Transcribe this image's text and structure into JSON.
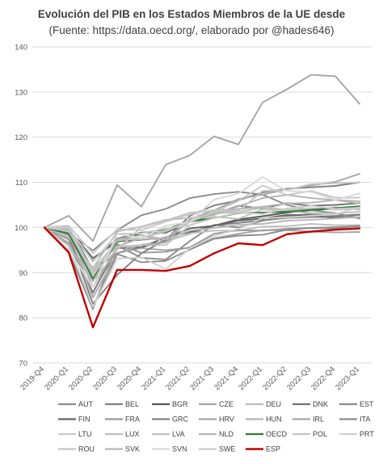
{
  "chart_data": {
    "type": "line",
    "title": "Evolución del PIB en los Estados Miembros de la UE desde",
    "subtitle": "(Fuente: https://data.oecd.org/, elaborado por @hades646)",
    "xlabel": "",
    "ylabel": "",
    "x": [
      "2019-Q4",
      "2020-Q1",
      "2020-Q2",
      "2020-Q3",
      "2020-Q4",
      "2021-Q1",
      "2021-Q2",
      "2021-Q3",
      "2021-Q4",
      "2022-Q1",
      "2022-Q2",
      "2022-Q3",
      "2022-Q4",
      "2023-Q1"
    ],
    "ylim": [
      70,
      140
    ],
    "yticks": [
      70,
      80,
      90,
      100,
      110,
      120,
      130,
      140
    ],
    "grid": true,
    "legend_position": "bottom",
    "highlight_series": "ESP",
    "series": [
      {
        "name": "AUT",
        "color": "#8c8c8c",
        "values": [
          100,
          97.4,
          85.5,
          96.0,
          93.3,
          92.9,
          97.0,
          100.6,
          100.0,
          101.5,
          102.5,
          103.0,
          102.6,
          102.9
        ]
      },
      {
        "name": "BEL",
        "color": "#7f7f7f",
        "values": [
          100,
          96.5,
          85.6,
          95.4,
          95.6,
          97.0,
          98.6,
          100.5,
          101.0,
          101.6,
          102.1,
          102.3,
          102.4,
          102.8
        ]
      },
      {
        "name": "BGR",
        "color": "#595959",
        "values": [
          100,
          99.8,
          90.7,
          94.3,
          95.6,
          97.8,
          99.0,
          100.4,
          101.8,
          102.5,
          103.3,
          103.8,
          104.2,
          104.7
        ]
      },
      {
        "name": "CZE",
        "color": "#a6a6a6",
        "values": [
          100,
          96.6,
          88.2,
          94.4,
          95.4,
          95.0,
          95.5,
          97.6,
          98.6,
          99.4,
          99.4,
          99.1,
          98.9,
          99.0
        ]
      },
      {
        "name": "DEU",
        "color": "#bfbfbf",
        "values": [
          100,
          98.1,
          89.5,
          97.6,
          98.3,
          96.8,
          98.7,
          99.3,
          99.3,
          100.2,
          100.3,
          100.8,
          100.5,
          100.5
        ]
      },
      {
        "name": "DNK",
        "color": "#737373",
        "values": [
          100,
          99.2,
          92.6,
          97.5,
          98.9,
          98.8,
          101.2,
          102.9,
          104.8,
          104.2,
          105.4,
          104.8,
          105.0,
          105.4
        ]
      },
      {
        "name": "EST",
        "color": "#8c8c8c",
        "values": [
          100,
          98.8,
          94.9,
          99.4,
          102.7,
          104.1,
          106.5,
          107.4,
          107.9,
          107.3,
          105.0,
          103.8,
          103.2,
          102.0
        ]
      },
      {
        "name": "FIN",
        "color": "#666666",
        "values": [
          100,
          99.6,
          93.2,
          96.9,
          97.3,
          97.7,
          99.8,
          100.4,
          101.5,
          102.0,
          102.8,
          102.7,
          102.1,
          102.3
        ]
      },
      {
        "name": "FRA",
        "color": "#999999",
        "values": [
          100,
          94.5,
          81.9,
          96.3,
          94.4,
          94.6,
          95.6,
          98.6,
          99.4,
          99.3,
          99.7,
          99.9,
          100.1,
          100.3
        ]
      },
      {
        "name": "GRC",
        "color": "#808080",
        "values": [
          100,
          98.2,
          83.1,
          89.5,
          94.3,
          97.3,
          102.6,
          104.9,
          106.0,
          107.8,
          108.6,
          108.9,
          109.2,
          110.0
        ]
      },
      {
        "name": "HRV",
        "color": "#a6a6a6",
        "values": [
          100,
          98.9,
          84.5,
          94.3,
          96.2,
          96.7,
          101.8,
          103.8,
          106.3,
          107.3,
          108.4,
          109.3,
          110.1,
          111.9
        ]
      },
      {
        "name": "HUN",
        "color": "#b3b3b3",
        "values": [
          100,
          99.5,
          86.7,
          95.8,
          97.7,
          99.1,
          101.6,
          102.8,
          104.7,
          106.5,
          107.2,
          106.5,
          106.1,
          105.8
        ]
      },
      {
        "name": "IRL",
        "color": "#a6a6a6",
        "values": [
          100,
          102.6,
          97.0,
          109.4,
          104.6,
          113.9,
          116.0,
          120.2,
          118.4,
          127.7,
          130.6,
          133.8,
          133.5,
          127.4
        ]
      },
      {
        "name": "ITA",
        "color": "#8c8c8c",
        "values": [
          100,
          94.6,
          82.3,
          94.1,
          92.3,
          92.6,
          95.1,
          97.5,
          98.2,
          98.4,
          99.5,
          99.9,
          99.8,
          100.4
        ]
      },
      {
        "name": "LTU",
        "color": "#c8c8c8",
        "values": [
          100,
          100.4,
          94.3,
          99.6,
          99.4,
          101.3,
          102.9,
          103.9,
          104.0,
          104.6,
          103.9,
          104.3,
          103.9,
          104.1
        ]
      },
      {
        "name": "LUX",
        "color": "#bdbdbd",
        "values": [
          100,
          98.1,
          91.0,
          99.1,
          100.2,
          101.7,
          102.1,
          103.1,
          103.4,
          104.4,
          103.8,
          104.0,
          104.5,
          103.9
        ]
      },
      {
        "name": "LVA",
        "color": "#c0c0c0",
        "values": [
          100,
          97.8,
          91.1,
          95.8,
          96.1,
          96.1,
          100.5,
          102.4,
          101.9,
          104.0,
          103.6,
          103.2,
          103.1,
          103.5
        ]
      },
      {
        "name": "NLD",
        "color": "#b5b5b5",
        "values": [
          100,
          98.3,
          90.2,
          97.3,
          97.4,
          97.6,
          101.3,
          103.3,
          104.1,
          104.6,
          105.3,
          105.5,
          106.1,
          105.3
        ]
      },
      {
        "name": "OECD",
        "color": "#2e7d32",
        "values": [
          100,
          98.6,
          88.7,
          96.8,
          98.8,
          99.6,
          101.3,
          102.1,
          103.2,
          103.3,
          103.5,
          103.9,
          104.3,
          104.7
        ]
      },
      {
        "name": "POL",
        "color": "#c6c6c6",
        "values": [
          100,
          99.2,
          90.5,
          97.1,
          97.7,
          99.4,
          101.2,
          103.4,
          105.9,
          109.3,
          107.2,
          108.1,
          106.6,
          106.6
        ]
      },
      {
        "name": "PRT",
        "color": "#d0d0d0",
        "values": [
          100,
          96.0,
          82.4,
          93.1,
          93.4,
          90.8,
          95.4,
          98.1,
          99.7,
          102.1,
          102.2,
          102.6,
          102.9,
          104.5
        ]
      },
      {
        "name": "ROU",
        "color": "#c4c4c4",
        "values": [
          100,
          100.3,
          89.8,
          95.1,
          100.1,
          101.5,
          103.3,
          103.6,
          103.6,
          108.1,
          108.3,
          109.6,
          109.8,
          110.0
        ]
      },
      {
        "name": "SVK",
        "color": "#b8b8b8",
        "values": [
          100,
          96.0,
          88.0,
          97.4,
          98.3,
          97.4,
          99.3,
          99.9,
          100.6,
          100.8,
          101.5,
          101.7,
          102.0,
          102.3
        ]
      },
      {
        "name": "SVN",
        "color": "#d9d9d9",
        "values": [
          100,
          95.1,
          86.7,
          98.6,
          97.6,
          100.4,
          101.2,
          106.2,
          107.5,
          111.2,
          108.1,
          107.9,
          106.1,
          107.6
        ]
      },
      {
        "name": "SWE",
        "color": "#cccccc",
        "values": [
          100,
          99.9,
          92.4,
          98.6,
          98.7,
          99.8,
          100.5,
          102.1,
          103.3,
          103.0,
          104.2,
          104.8,
          104.1,
          104.4
        ]
      },
      {
        "name": "ESP",
        "color": "#c00000",
        "values": [
          100,
          94.5,
          77.9,
          90.6,
          90.6,
          90.4,
          91.5,
          94.3,
          96.5,
          96.1,
          98.5,
          99.1,
          99.5,
          99.8
        ]
      }
    ]
  }
}
